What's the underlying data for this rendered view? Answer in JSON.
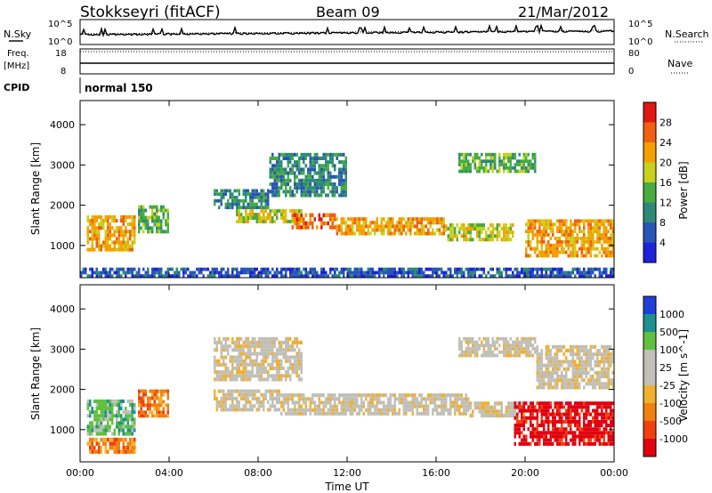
{
  "header": {
    "station": "Stokkseyri (fitACF)",
    "beam": "Beam 09",
    "date": "21/Mar/2012"
  },
  "status_panels": {
    "nsky_label": "N.Sky",
    "nsearch_label": "N.Search",
    "freq_label": "Freq.",
    "freq_unit": "[MHz]",
    "nave_label": "Nave",
    "cpid_label": "CPID",
    "cpid_value": "normal 150",
    "noise_ticks": [
      "10^5",
      "10^0"
    ],
    "freq_ticks": [
      "18",
      "8"
    ],
    "nave_ticks": [
      "80",
      "0"
    ]
  },
  "chart_data": [
    {
      "type": "heatmap",
      "name": "power",
      "xlabel": "",
      "ylabel": "Slant Range [km]",
      "colorbar_label": "Power [dB]",
      "colorbar_ticks": [
        "28",
        "24",
        "20",
        "16",
        "12",
        "8",
        "4"
      ],
      "colorbar_colors": [
        "#1e22d8",
        "#2a55b8",
        "#2e8a78",
        "#48ac40",
        "#c8d020",
        "#f4a000",
        "#f06010",
        "#e01810"
      ],
      "xlim": [
        0,
        24
      ],
      "ylim": [
        200,
        4600
      ],
      "yticks": [
        1000,
        2000,
        3000,
        4000
      ],
      "xticks": [
        "00:00",
        "04:00",
        "08:00",
        "12:00",
        "16:00",
        "20:00",
        "00:00"
      ],
      "bands": [
        {
          "t0": 0.3,
          "t1": 2.5,
          "r0": 850,
          "r1": 1750,
          "level": 5
        },
        {
          "t0": 2.6,
          "t1": 4.0,
          "r0": 1300,
          "r1": 2000,
          "level": 3
        },
        {
          "t0": 6.0,
          "t1": 8.5,
          "r0": 1900,
          "r1": 2400,
          "level": 2
        },
        {
          "t0": 7.0,
          "t1": 10.0,
          "r0": 1550,
          "r1": 1900,
          "level": 4
        },
        {
          "t0": 9.5,
          "t1": 11.5,
          "r0": 1400,
          "r1": 1800,
          "level": 6
        },
        {
          "t0": 11.5,
          "t1": 16.5,
          "r0": 1250,
          "r1": 1700,
          "level": 5
        },
        {
          "t0": 16.5,
          "t1": 19.5,
          "r0": 1100,
          "r1": 1550,
          "level": 4
        },
        {
          "t0": 20.0,
          "t1": 24.0,
          "r0": 700,
          "r1": 1650,
          "level": 5
        },
        {
          "t0": 17.0,
          "t1": 20.5,
          "r0": 2800,
          "r1": 3300,
          "level": 3
        },
        {
          "t0": 8.5,
          "t1": 12.0,
          "r0": 2200,
          "r1": 3300,
          "level": 2
        },
        {
          "t0": 0.0,
          "t1": 24.0,
          "r0": 200,
          "r1": 450,
          "level": 1
        }
      ]
    },
    {
      "type": "heatmap",
      "name": "velocity",
      "xlabel": "Time UT",
      "ylabel": "Slant Range [km]",
      "colorbar_label": "Velocity [m s^-1]",
      "colorbar_ticks": [
        "1000",
        "500",
        "100",
        "25",
        "-25",
        "-100",
        "-500",
        "-1000"
      ],
      "colorbar_colors": [
        "#e00010",
        "#f04010",
        "#f08010",
        "#f0b030",
        "#c0c0b8",
        "#c0c0b8",
        "#60c040",
        "#1e9090",
        "#1e40d8"
      ],
      "xlim": [
        0,
        24
      ],
      "ylim": [
        200,
        4600
      ],
      "yticks": [
        1000,
        2000,
        3000,
        4000
      ],
      "xticks": [
        "00:00",
        "04:00",
        "08:00",
        "12:00",
        "16:00",
        "20:00",
        "00:00"
      ],
      "bands": [
        {
          "t0": 0.3,
          "t1": 2.5,
          "r0": 850,
          "r1": 1750,
          "level": 6
        },
        {
          "t0": 0.3,
          "t1": 2.5,
          "r0": 400,
          "r1": 800,
          "level": 2
        },
        {
          "t0": 2.6,
          "t1": 4.0,
          "r0": 1300,
          "r1": 2000,
          "level": 2
        },
        {
          "t0": 6.0,
          "t1": 9.0,
          "r0": 1450,
          "r1": 2000,
          "level": 4
        },
        {
          "t0": 9.0,
          "t1": 17.5,
          "r0": 1350,
          "r1": 1900,
          "level": 4
        },
        {
          "t0": 17.5,
          "t1": 20.0,
          "r0": 1300,
          "r1": 1700,
          "level": 4
        },
        {
          "t0": 19.5,
          "t1": 24.0,
          "r0": 600,
          "r1": 1700,
          "level": 0
        },
        {
          "t0": 17.0,
          "t1": 20.5,
          "r0": 2800,
          "r1": 3300,
          "level": 4
        },
        {
          "t0": 6.0,
          "t1": 10.0,
          "r0": 2200,
          "r1": 3300,
          "level": 4
        },
        {
          "t0": 20.5,
          "t1": 24.0,
          "r0": 2000,
          "r1": 3100,
          "level": 4
        }
      ]
    }
  ]
}
